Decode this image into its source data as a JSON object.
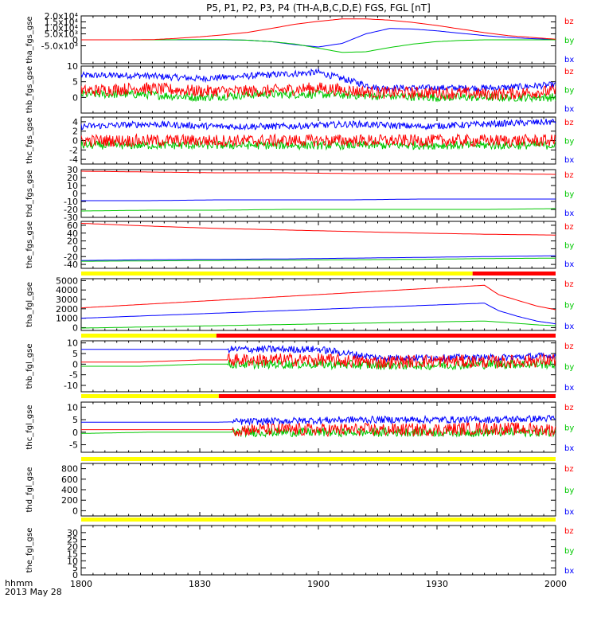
{
  "title": "P5, P1, P2, P3, P4 (TH-A,B,C,D,E) FGS, FGL [nT]",
  "x_axis": {
    "tick_labels": [
      "1800",
      "1830",
      "1900",
      "1930",
      "2000"
    ],
    "label": "hhmm",
    "date": "2013 May 28"
  },
  "colors": {
    "bx": "#0000ff",
    "by": "#00c800",
    "bz": "#ff0000",
    "bar_yellow": "#ffff00",
    "bar_red": "#ff0000",
    "axis": "#000000"
  },
  "legend": [
    "bz",
    "by",
    "bx"
  ],
  "chart_data": [
    {
      "type": "line",
      "name": "tha_fgs_gse",
      "ylim": [
        -20000,
        20000
      ],
      "yticks": [
        "-5.0x10³",
        "0",
        "5.0x10³",
        "1.0x10⁴",
        "1.5x10⁴",
        "2.0x10⁴"
      ],
      "ytick_values": [
        -5000,
        0,
        5000,
        10000,
        15000,
        20000
      ],
      "x": [
        "18:00",
        "18:10",
        "18:20",
        "18:30",
        "18:40",
        "18:45",
        "18:50",
        "18:55",
        "19:00",
        "19:05",
        "19:10",
        "19:15",
        "19:20",
        "19:25",
        "19:30",
        "19:35",
        "19:40",
        "19:45",
        "19:50",
        "19:55",
        "20:00"
      ],
      "series": [
        {
          "name": "bz",
          "values": [
            0,
            0,
            0,
            200,
            1200,
            2500,
            4200,
            6200,
            9500,
            13000,
            15500,
            17500,
            17500,
            16500,
            14500,
            12000,
            9000,
            6000,
            3500,
            2000,
            500
          ]
        },
        {
          "name": "by",
          "values": [
            0,
            0,
            0,
            0,
            100,
            200,
            200,
            -300,
            -1500,
            -3500,
            -7000,
            -10500,
            -10000,
            -6500,
            -3500,
            -1500,
            -500,
            0,
            0,
            0,
            0
          ]
        },
        {
          "name": "bx",
          "values": [
            0,
            0,
            0,
            0,
            0,
            0,
            0,
            -300,
            -1500,
            -4000,
            -6000,
            -3000,
            5000,
            9500,
            9000,
            7500,
            5500,
            3500,
            2000,
            1000,
            300
          ]
        }
      ]
    },
    {
      "type": "line",
      "name": "thb_fgs_gse",
      "noisy": true,
      "ylim": [
        -5,
        10
      ],
      "yticks": [
        "0",
        "5",
        "10"
      ],
      "ytick_values": [
        0,
        5,
        10
      ],
      "series": [
        {
          "name": "bz",
          "values": [
            2,
            3,
            2,
            2,
            3,
            1.5,
            1.5,
            1,
            2
          ]
        },
        {
          "name": "by",
          "values": [
            1,
            1,
            0,
            1,
            1,
            0.5,
            0,
            0,
            0
          ]
        },
        {
          "name": "bx",
          "values": [
            7,
            7,
            6,
            7,
            8,
            3,
            3,
            3,
            4
          ]
        }
      ]
    },
    {
      "type": "line",
      "name": "thc_fgs_gse",
      "noisy": true,
      "ylim": [
        -5,
        5
      ],
      "yticks": [
        "-4",
        "-2",
        "0",
        "2",
        "4"
      ],
      "ytick_values": [
        -4,
        -2,
        0,
        2,
        4
      ],
      "series": [
        {
          "name": "bz",
          "values": [
            0,
            0,
            0,
            0,
            0,
            0,
            0,
            0
          ]
        },
        {
          "name": "by",
          "values": [
            -1,
            -1,
            -1,
            -1,
            -1,
            -1,
            -1,
            -1
          ]
        },
        {
          "name": "bx",
          "values": [
            3,
            3.5,
            3,
            3,
            3.5,
            3,
            3.5,
            4
          ]
        }
      ]
    },
    {
      "type": "line",
      "name": "thd_fgs_gse",
      "ylim": [
        -30,
        30
      ],
      "yticks": [
        "-30",
        "-20",
        "-10",
        "0",
        "10",
        "20",
        "30"
      ],
      "ytick_values": [
        -30,
        -20,
        -10,
        0,
        10,
        20,
        30
      ],
      "series": [
        {
          "name": "bz",
          "values": [
            28,
            27,
            26,
            26,
            25,
            25,
            25,
            24
          ]
        },
        {
          "name": "by",
          "values": [
            -22,
            -21,
            -21,
            -20,
            -20,
            -20,
            -20,
            -19
          ]
        },
        {
          "name": "bx",
          "values": [
            -9,
            -9,
            -8,
            -8,
            -8,
            -7,
            -7,
            -7
          ]
        }
      ]
    },
    {
      "type": "line",
      "name": "the_fgs_gse",
      "ylim": [
        -50,
        70
      ],
      "yticks": [
        "-40",
        "-20",
        "0",
        "20",
        "40",
        "60"
      ],
      "ytick_values": [
        -40,
        -20,
        0,
        20,
        40,
        60
      ],
      "series": [
        {
          "name": "bz",
          "values": [
            65,
            58,
            52,
            48,
            44,
            40,
            37,
            35
          ]
        },
        {
          "name": "by",
          "values": [
            -32,
            -31,
            -30,
            -29,
            -28,
            -27,
            -25,
            -24
          ]
        },
        {
          "name": "bx",
          "values": [
            -30,
            -28,
            -27,
            -26,
            -24,
            -22,
            -20,
            -18
          ]
        }
      ],
      "status_bar": [
        {
          "color": "yellow",
          "from": 0.0,
          "to": 0.825
        },
        {
          "color": "red",
          "from": 0.825,
          "to": 1.0
        }
      ]
    },
    {
      "type": "line",
      "name": "tha_fgl_gse",
      "ylim": [
        -300,
        5200
      ],
      "yticks": [
        "0",
        "1000",
        "2000",
        "3000",
        "4000",
        "5000"
      ],
      "ytick_values": [
        0,
        1000,
        2000,
        3000,
        4000,
        5000
      ],
      "x_frac": [
        0,
        0.85,
        0.88,
        0.92,
        0.96,
        1.0
      ],
      "series": [
        {
          "name": "bz",
          "values": [
            2100,
            4500,
            3500,
            2900,
            2300,
            1900
          ]
        },
        {
          "name": "by",
          "values": [
            -50,
            700,
            600,
            450,
            300,
            200
          ]
        },
        {
          "name": "bx",
          "values": [
            1000,
            2600,
            1800,
            1200,
            700,
            400
          ]
        }
      ],
      "status_bar": [
        {
          "color": "yellow",
          "from": 0.0,
          "to": 0.285
        },
        {
          "color": "red",
          "from": 0.285,
          "to": 1.0
        }
      ]
    },
    {
      "type": "line",
      "name": "thb_fgl_gse",
      "noisy_after": 0.31,
      "ylim": [
        -13,
        11
      ],
      "yticks": [
        "-10",
        "-5",
        "0",
        "5",
        "10"
      ],
      "ytick_values": [
        -10,
        -5,
        0,
        5,
        10
      ],
      "series": [
        {
          "name": "bz",
          "values": [
            1,
            1,
            2,
            2,
            2,
            1,
            1.5,
            1,
            2
          ]
        },
        {
          "name": "by",
          "values": [
            -1,
            -1,
            0,
            0,
            0,
            -0.5,
            -0.5,
            0,
            0
          ]
        },
        {
          "name": "bx",
          "values": [
            7,
            7,
            7,
            7,
            7,
            3,
            3,
            3,
            4
          ]
        }
      ],
      "status_bar": [
        {
          "color": "yellow",
          "from": 0.0,
          "to": 0.29
        },
        {
          "color": "red",
          "from": 0.29,
          "to": 1.0
        }
      ]
    },
    {
      "type": "line",
      "name": "thc_fgl_gse",
      "noisy_after": 0.32,
      "ylim": [
        -8,
        12
      ],
      "yticks": [
        "-5",
        "0",
        "5",
        "10"
      ],
      "ytick_values": [
        -5,
        0,
        5,
        10
      ],
      "series": [
        {
          "name": "bz",
          "values": [
            1,
            1,
            1,
            1,
            1,
            1,
            1.5,
            1
          ]
        },
        {
          "name": "by",
          "values": [
            -0.5,
            0,
            0,
            0,
            0,
            0,
            0,
            0
          ]
        },
        {
          "name": "bx",
          "values": [
            4,
            4,
            4,
            4.5,
            5,
            5,
            5,
            5.5
          ]
        }
      ],
      "status_bar": [
        {
          "color": "yellow",
          "from": 0.0,
          "to": 1.0
        }
      ]
    },
    {
      "type": "line",
      "name": "thd_fgl_gse",
      "ylim": [
        -100,
        900
      ],
      "yticks": [
        "0",
        "200",
        "400",
        "600",
        "800"
      ],
      "ytick_values": [
        0,
        200,
        400,
        600,
        800
      ],
      "series": [],
      "status_bar": [
        {
          "color": "yellow",
          "from": 0.0,
          "to": 1.0
        }
      ]
    },
    {
      "type": "line",
      "name": "the_fgl_gse",
      "ylim": [
        0,
        35
      ],
      "yticks": [
        "0",
        "5",
        "10",
        "15",
        "20",
        "25",
        "30"
      ],
      "ytick_values": [
        0,
        5,
        10,
        15,
        20,
        25,
        30
      ],
      "series": []
    }
  ]
}
